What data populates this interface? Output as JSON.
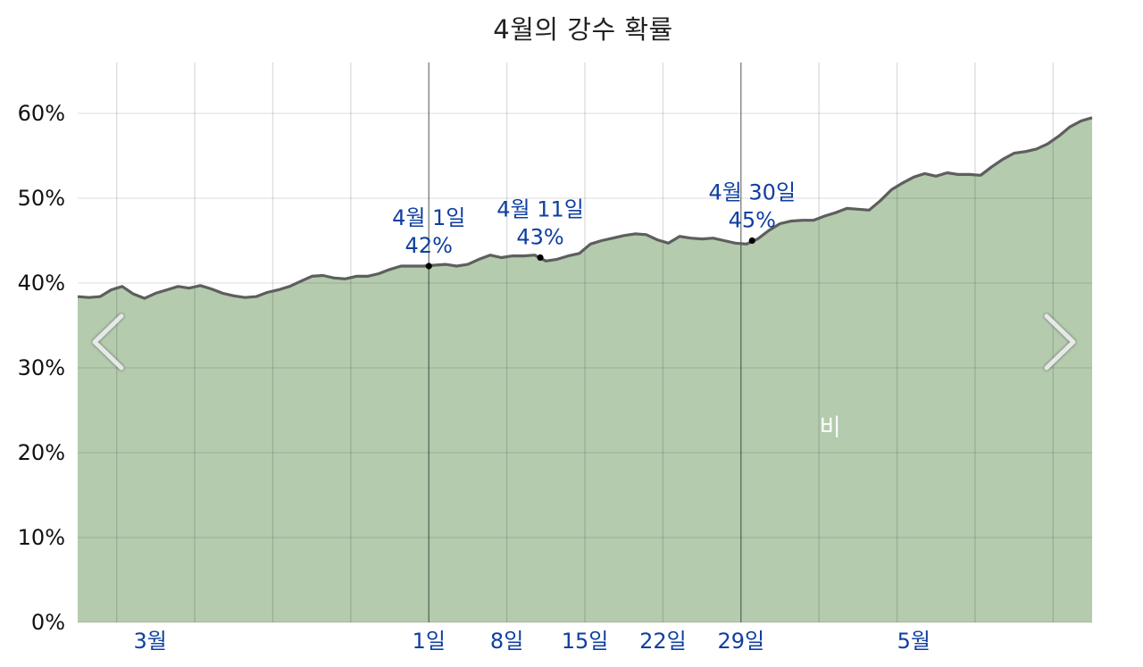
{
  "chart_data": {
    "type": "area",
    "title": "4월의 강수 확률",
    "xlabel": "",
    "ylabel": "",
    "ylim": [
      0,
      66
    ],
    "yticks": [
      "0%",
      "10%",
      "20%",
      "30%",
      "40%",
      "50%",
      "60%"
    ],
    "ytick_values": [
      0,
      10,
      20,
      30,
      40,
      50,
      60
    ],
    "xticks": [
      {
        "label": "3월",
        "day": -24
      },
      {
        "label": "1일",
        "day": 1
      },
      {
        "label": "8일",
        "day": 8
      },
      {
        "label": "15일",
        "day": 15
      },
      {
        "label": "22일",
        "day": 22
      },
      {
        "label": "29일",
        "day": 29
      },
      {
        "label": "5월",
        "day": 44.5
      }
    ],
    "xlim": [
      -30.5,
      60.5
    ],
    "grid": true,
    "series": [
      {
        "name": "비",
        "color": "#b4cbae",
        "line_color": "#5e5e5e",
        "x": [
          -30.5,
          -29.5,
          -28.5,
          -27.5,
          -26.5,
          -25.5,
          -24.5,
          -23.5,
          -22.5,
          -21.5,
          -20.5,
          -19.5,
          -18.5,
          -17.5,
          -16.5,
          -15.5,
          -14.5,
          -13.5,
          -12.5,
          -11.5,
          -10.5,
          -9.5,
          -8.5,
          -7.5,
          -6.5,
          -5.5,
          -4.5,
          -3.5,
          -2.5,
          -1.5,
          -0.5,
          0.5,
          1.5,
          2.5,
          3.5,
          4.5,
          5.5,
          6.5,
          7.5,
          8.5,
          9.5,
          10.5,
          11.5,
          12.5,
          13.5,
          14.5,
          15.5,
          16.5,
          17.5,
          18.5,
          19.5,
          20.5,
          21.5,
          22.5,
          23.5,
          24.5,
          25.5,
          26.5,
          27.5,
          28.5,
          29.5,
          30.5,
          31.5,
          32.5,
          33.5,
          34.5,
          35.5,
          36.5,
          37.5,
          38.5,
          39.5,
          40.5,
          41.5,
          42.5,
          43.5,
          44.5,
          45.5,
          46.5,
          47.5,
          48.5,
          49.5,
          50.5,
          51.5,
          52.5,
          53.5,
          54.5,
          55.5,
          56.5,
          57.5,
          58.5,
          59.5,
          60.5
        ],
        "values": [
          38.4,
          38.3,
          38.4,
          39.2,
          39.6,
          38.7,
          38.2,
          38.8,
          39.2,
          39.6,
          39.4,
          39.7,
          39.3,
          38.8,
          38.5,
          38.3,
          38.4,
          38.9,
          39.2,
          39.6,
          40.2,
          40.8,
          40.9,
          40.6,
          40.5,
          40.8,
          40.8,
          41.1,
          41.6,
          42.0,
          42.0,
          42.0,
          42.1,
          42.2,
          42.0,
          42.2,
          42.8,
          43.3,
          43.0,
          43.2,
          43.2,
          43.3,
          42.6,
          42.8,
          43.2,
          43.5,
          44.6,
          45.0,
          45.3,
          45.6,
          45.8,
          45.7,
          45.1,
          44.7,
          45.5,
          45.3,
          45.2,
          45.3,
          45.0,
          44.7,
          44.6,
          45.2,
          46.2,
          47.0,
          47.3,
          47.4,
          47.4,
          47.9,
          48.3,
          48.8,
          48.7,
          48.6,
          49.7,
          51.0,
          51.8,
          52.5,
          52.9,
          52.6,
          53.0,
          52.8,
          52.8,
          52.7,
          53.7,
          54.6,
          55.3,
          55.5,
          55.8,
          56.4,
          57.3,
          58.4,
          59.1,
          59.5
        ]
      }
    ],
    "vlines": [
      {
        "day": 1,
        "weight": "strong"
      },
      {
        "day": 29,
        "weight": "strong"
      }
    ],
    "annotations": [
      {
        "day": 1,
        "value": 42,
        "label_line1": "4월 1일",
        "label_line2": "42%"
      },
      {
        "day": 11,
        "value": 43,
        "label_line1": "4월 11일",
        "label_line2": "43%"
      },
      {
        "day": 30,
        "value": 45,
        "label_line1": "4월 30일",
        "label_line2": "45%"
      }
    ],
    "area_label": "비",
    "area_label_at": {
      "day": 37,
      "value": 23
    },
    "nav": {
      "prev": "chevron-left-icon",
      "next": "chevron-right-icon"
    }
  }
}
